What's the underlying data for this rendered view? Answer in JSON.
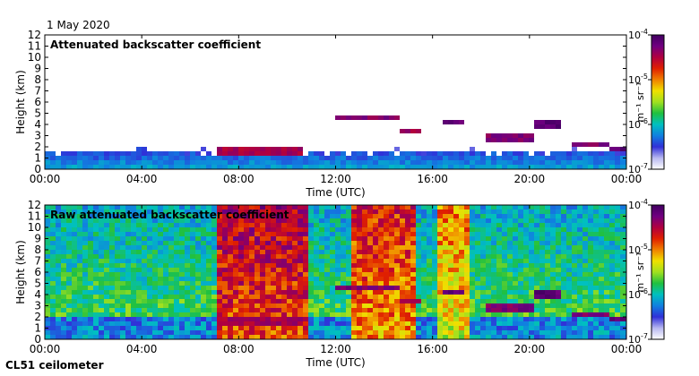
{
  "date": "1 May 2020",
  "instrument": "CL51 ceilometer",
  "colorbar": {
    "unit": "m⁻¹ sr⁻¹",
    "ticks": [
      {
        "exp": -4,
        "label": "10",
        "sup": "-4"
      },
      {
        "exp": -5,
        "label": "10",
        "sup": "-5"
      },
      {
        "exp": -6,
        "label": "10",
        "sup": "-6"
      },
      {
        "exp": -7,
        "label": "10",
        "sup": "-7"
      }
    ],
    "range_exp": [
      -7,
      -4
    ],
    "colors": [
      "#ffffff",
      "#b8b8f0",
      "#3030d8",
      "#1080e0",
      "#00c0c0",
      "#20c040",
      "#a0e020",
      "#f0e000",
      "#f08000",
      "#e02000",
      "#b00040",
      "#700080",
      "#400060"
    ]
  },
  "chart_data": [
    {
      "type": "heatmap",
      "title": "Attenuated backscatter coefficient",
      "xlabel": "Time (UTC)",
      "ylabel": "Height (km)",
      "xlim_hours": [
        0,
        24
      ],
      "ylim_km": [
        0,
        12
      ],
      "x_ticks": [
        "00:00",
        "04:00",
        "08:00",
        "12:00",
        "16:00",
        "20:00",
        "00:00"
      ],
      "y_ticks": [
        "0",
        "1",
        "2",
        "3",
        "4",
        "5",
        "6",
        "7",
        "8",
        "9",
        "10",
        "11",
        "12"
      ],
      "features": [
        {
          "kind": "boundary_layer",
          "t_start": 0,
          "t_end": 24,
          "top_km": 1.6,
          "level": 0.3
        },
        {
          "kind": "cloud_layer",
          "t_start": 7.0,
          "t_end": 10.5,
          "height_km": 1.6,
          "level": 0.85
        },
        {
          "kind": "cloud_layer",
          "t_start": 12.0,
          "t_end": 14.5,
          "height_km": 4.5,
          "level": 0.9
        },
        {
          "kind": "cloud_layer",
          "t_start": 14.5,
          "t_end": 15.5,
          "height_km": 3.3,
          "level": 0.85
        },
        {
          "kind": "cloud_layer",
          "t_start": 16.3,
          "t_end": 17.2,
          "height_km": 4.2,
          "level": 0.95
        },
        {
          "kind": "cloud_layer",
          "t_start": 18.0,
          "t_end": 20.0,
          "height_km": 2.8,
          "level": 0.9
        },
        {
          "kind": "cloud_layer",
          "t_start": 20.0,
          "t_end": 21.2,
          "height_km": 4.0,
          "level": 0.95
        },
        {
          "kind": "cloud_layer",
          "t_start": 21.5,
          "t_end": 23.2,
          "height_km": 2.2,
          "level": 0.9
        },
        {
          "kind": "cloud_layer",
          "t_start": 23.2,
          "t_end": 24.0,
          "height_km": 1.8,
          "level": 0.95
        }
      ]
    },
    {
      "type": "heatmap",
      "title": "Raw attenuated backscatter coefficient",
      "xlabel": "Time (UTC)",
      "ylabel": "Height (km)",
      "xlim_hours": [
        0,
        24
      ],
      "ylim_km": [
        0,
        12
      ],
      "x_ticks": [
        "00:00",
        "04:00",
        "08:00",
        "12:00",
        "16:00",
        "20:00",
        "00:00"
      ],
      "y_ticks": [
        "0",
        "1",
        "2",
        "3",
        "4",
        "5",
        "6",
        "7",
        "8",
        "9",
        "10",
        "11",
        "12"
      ],
      "features": [
        {
          "kind": "background_noise",
          "t_start": 0,
          "t_end": 24,
          "level": 0.45
        },
        {
          "kind": "high_noise_period",
          "t_start": 7.0,
          "t_end": 10.8,
          "level": 0.72
        },
        {
          "kind": "high_noise_period",
          "t_start": 12.5,
          "t_end": 15.2,
          "level": 0.65
        },
        {
          "kind": "high_noise_period",
          "t_start": 16.0,
          "t_end": 17.3,
          "level": 0.55
        },
        {
          "kind": "cloud_layer",
          "t_start": 7.0,
          "t_end": 10.5,
          "height_km": 1.6,
          "level": 0.85
        },
        {
          "kind": "cloud_layer",
          "t_start": 12.0,
          "t_end": 14.5,
          "height_km": 4.5,
          "level": 0.9
        },
        {
          "kind": "cloud_layer",
          "t_start": 14.5,
          "t_end": 15.5,
          "height_km": 3.3,
          "level": 0.85
        },
        {
          "kind": "cloud_layer",
          "t_start": 16.3,
          "t_end": 17.2,
          "height_km": 4.2,
          "level": 0.95
        },
        {
          "kind": "cloud_layer",
          "t_start": 18.0,
          "t_end": 20.0,
          "height_km": 2.8,
          "level": 0.9
        },
        {
          "kind": "cloud_layer",
          "t_start": 20.0,
          "t_end": 21.2,
          "height_km": 4.0,
          "level": 0.95
        },
        {
          "kind": "cloud_layer",
          "t_start": 21.5,
          "t_end": 23.2,
          "height_km": 2.2,
          "level": 0.9
        },
        {
          "kind": "cloud_layer",
          "t_start": 23.2,
          "t_end": 24.0,
          "height_km": 1.8,
          "level": 0.95
        }
      ]
    }
  ]
}
